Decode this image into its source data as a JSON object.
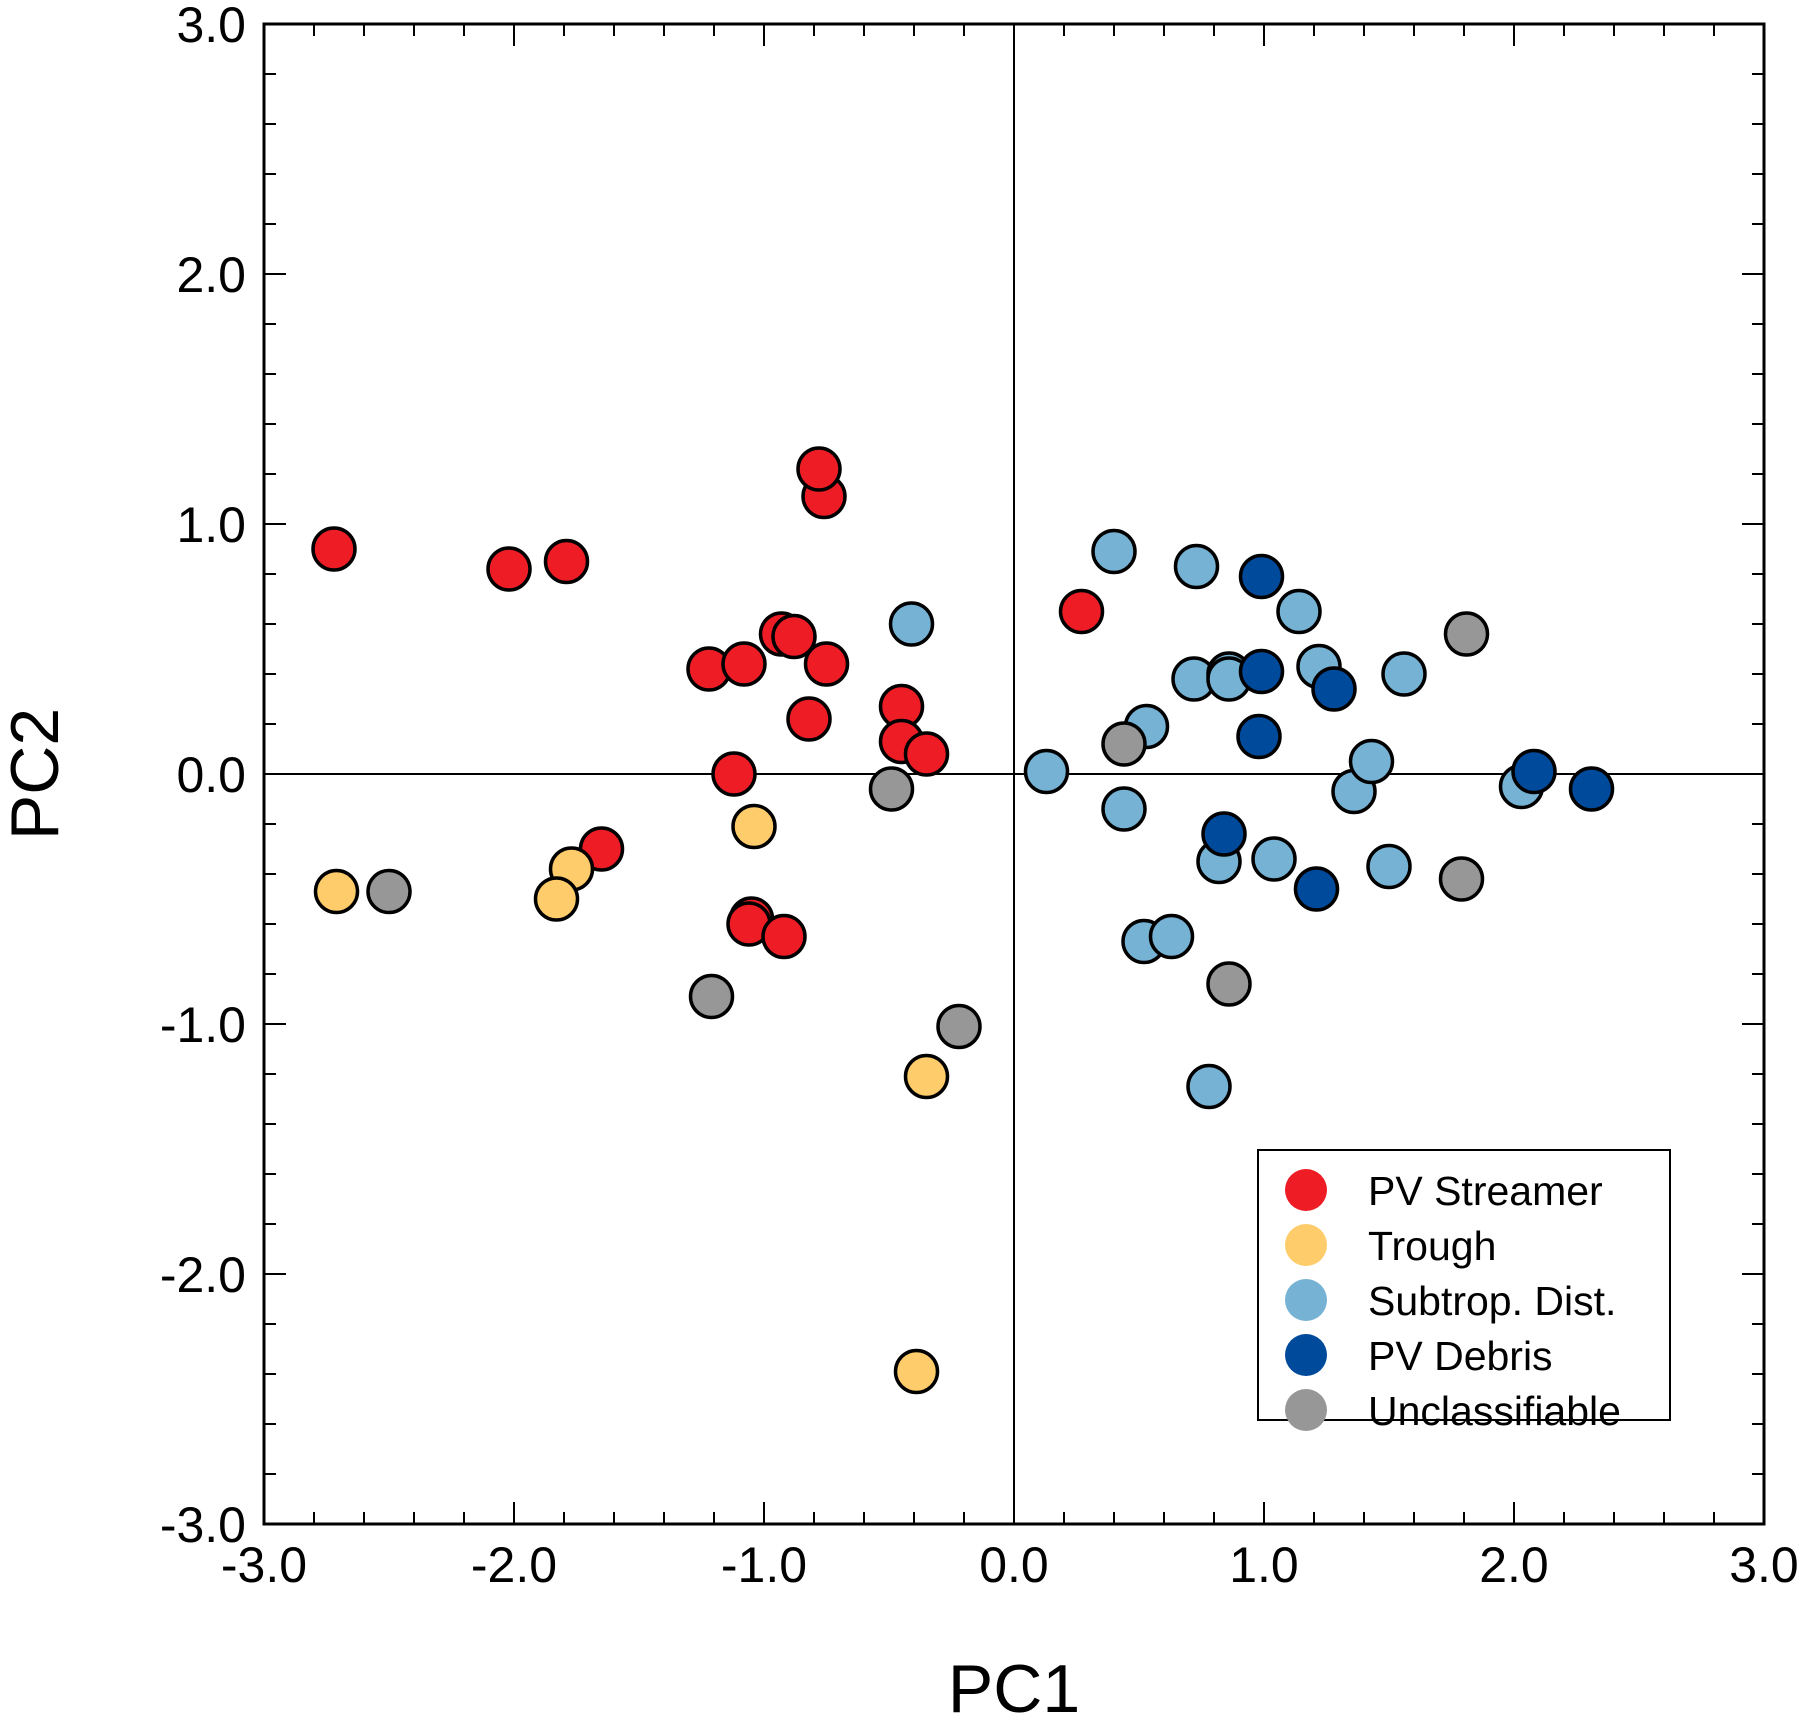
{
  "chart_data": {
    "type": "scatter",
    "xlabel": "PC1",
    "ylabel": "PC2",
    "xlim": [
      -3.0,
      3.0
    ],
    "ylim": [
      -3.0,
      3.0
    ],
    "x_ticks": [
      -3.0,
      -2.0,
      -1.0,
      0.0,
      1.0,
      2.0,
      3.0
    ],
    "y_ticks": [
      -3.0,
      -2.0,
      -1.0,
      0.0,
      1.0,
      2.0,
      3.0
    ],
    "x_tick_labels": [
      "-3.0",
      "-2.0",
      "-1.0",
      "0.0",
      "1.0",
      "2.0",
      "3.0"
    ],
    "y_tick_labels": [
      "-3.0",
      "-2.0",
      "-1.0",
      "0.0",
      "1.0",
      "2.0",
      "3.0"
    ],
    "grid": false,
    "zero_lines": true,
    "legend_position": "bottom-right",
    "series": [
      {
        "name": "PV Streamer",
        "color": "#ee1c25",
        "points": [
          [
            -2.72,
            0.9
          ],
          [
            -2.02,
            0.82
          ],
          [
            -1.79,
            0.85
          ],
          [
            -1.65,
            -0.3
          ],
          [
            -1.22,
            0.42
          ],
          [
            -1.08,
            0.44
          ],
          [
            -1.12,
            0.0
          ],
          [
            -1.05,
            -0.58
          ],
          [
            -1.06,
            -0.6
          ],
          [
            -0.92,
            -0.65
          ],
          [
            -0.93,
            0.56
          ],
          [
            -0.88,
            0.55
          ],
          [
            -0.82,
            0.22
          ],
          [
            -0.75,
            0.44
          ],
          [
            -0.76,
            1.11
          ],
          [
            -0.78,
            1.22
          ],
          [
            -0.45,
            0.27
          ],
          [
            -0.45,
            0.13
          ],
          [
            -0.35,
            0.08
          ],
          [
            0.27,
            0.65
          ]
        ]
      },
      {
        "name": "Trough",
        "color": "#fecc6a",
        "points": [
          [
            -2.71,
            -0.47
          ],
          [
            -1.77,
            -0.38
          ],
          [
            -1.83,
            -0.5
          ],
          [
            -1.04,
            -0.21
          ],
          [
            -0.35,
            -1.21
          ],
          [
            -0.39,
            -2.39
          ]
        ]
      },
      {
        "name": "Subtrop. Dist.",
        "color": "#75b2d4",
        "points": [
          [
            -0.41,
            0.6
          ],
          [
            0.13,
            0.01
          ],
          [
            0.4,
            0.89
          ],
          [
            0.44,
            -0.14
          ],
          [
            0.53,
            0.19
          ],
          [
            0.52,
            -0.67
          ],
          [
            0.63,
            -0.65
          ],
          [
            0.72,
            0.38
          ],
          [
            0.73,
            0.83
          ],
          [
            0.78,
            -1.25
          ],
          [
            0.82,
            -0.35
          ],
          [
            0.86,
            0.4
          ],
          [
            0.86,
            0.38
          ],
          [
            1.04,
            -0.34
          ],
          [
            1.14,
            0.65
          ],
          [
            1.22,
            0.43
          ],
          [
            1.36,
            -0.07
          ],
          [
            1.43,
            0.05
          ],
          [
            1.5,
            -0.37
          ],
          [
            1.56,
            0.4
          ],
          [
            2.03,
            -0.05
          ]
        ]
      },
      {
        "name": "PV Debris",
        "color": "#004a9c",
        "points": [
          [
            0.99,
            0.79
          ],
          [
            0.99,
            0.41
          ],
          [
            0.98,
            0.15
          ],
          [
            0.84,
            -0.24
          ],
          [
            1.21,
            -0.46
          ],
          [
            1.28,
            0.34
          ],
          [
            2.08,
            0.01
          ],
          [
            2.31,
            -0.06
          ]
        ]
      },
      {
        "name": "Unclassifiable",
        "color": "#979797",
        "points": [
          [
            -2.5,
            -0.47
          ],
          [
            -1.21,
            -0.89
          ],
          [
            -0.49,
            -0.06
          ],
          [
            -0.22,
            -1.01
          ],
          [
            0.44,
            0.12
          ],
          [
            0.86,
            -0.84
          ],
          [
            1.79,
            -0.42
          ],
          [
            1.81,
            0.56
          ]
        ]
      }
    ]
  }
}
